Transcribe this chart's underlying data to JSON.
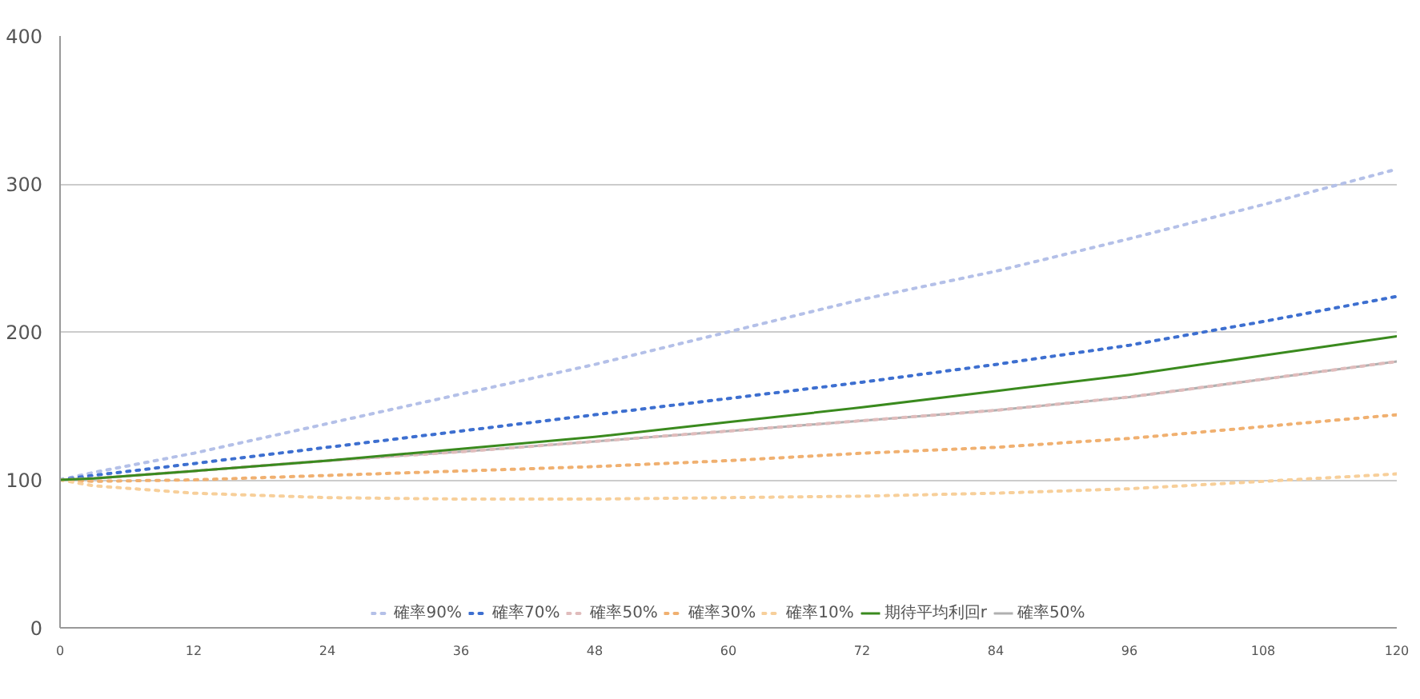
{
  "chart_data": {
    "type": "line",
    "x": [
      0,
      3,
      12,
      24,
      36,
      48,
      60,
      72,
      84,
      96,
      108,
      120
    ],
    "xlim": [
      0,
      120
    ],
    "xticks": [
      0,
      12,
      24,
      36,
      48,
      60,
      72,
      84,
      96,
      108,
      120
    ],
    "ylim": [
      0,
      400
    ],
    "yticks": [
      0,
      100,
      200,
      300,
      400
    ],
    "grid": "y",
    "legend": "bottom",
    "marker": "none",
    "series": [
      {
        "name": "確率90%",
        "color": "#b4c0e8",
        "line_style": "dotted",
        "values": [
          100,
          105,
          118,
          138,
          158,
          178,
          200,
          222,
          241,
          263,
          286,
          310
        ]
      },
      {
        "name": "確率70%",
        "color": "#3d6fd0",
        "line_style": "dotted",
        "values": [
          100,
          103,
          111,
          122,
          133,
          144,
          155,
          166,
          178,
          191,
          207,
          224
        ]
      },
      {
        "name": "確率50%",
        "color": "#e0bcbc",
        "line_style": "dotted",
        "values": [
          100,
          101,
          106,
          113,
          119,
          126,
          133,
          140,
          147,
          156,
          168,
          180
        ]
      },
      {
        "name": "確率30%",
        "color": "#f0b070",
        "line_style": "dotted",
        "values": [
          100,
          99,
          100,
          103,
          106,
          109,
          113,
          118,
          122,
          128,
          136,
          144
        ]
      },
      {
        "name": "確率10%",
        "color": "#f7cf9a",
        "line_style": "dotted",
        "values": [
          100,
          96,
          91,
          88,
          87,
          87,
          88,
          89,
          91,
          94,
          99,
          104
        ]
      },
      {
        "name": "期待平均利回r",
        "color": "#3a8a1e",
        "line_style": "solid",
        "values": [
          100,
          101,
          106,
          113,
          121,
          129,
          139,
          149,
          160,
          171,
          184,
          197
        ]
      },
      {
        "name": "確率50%",
        "color": "#b0b0b0",
        "line_style": "solid",
        "values": [
          100,
          101,
          106,
          113,
          119,
          126,
          133,
          140,
          147,
          156,
          168,
          180
        ]
      }
    ]
  }
}
